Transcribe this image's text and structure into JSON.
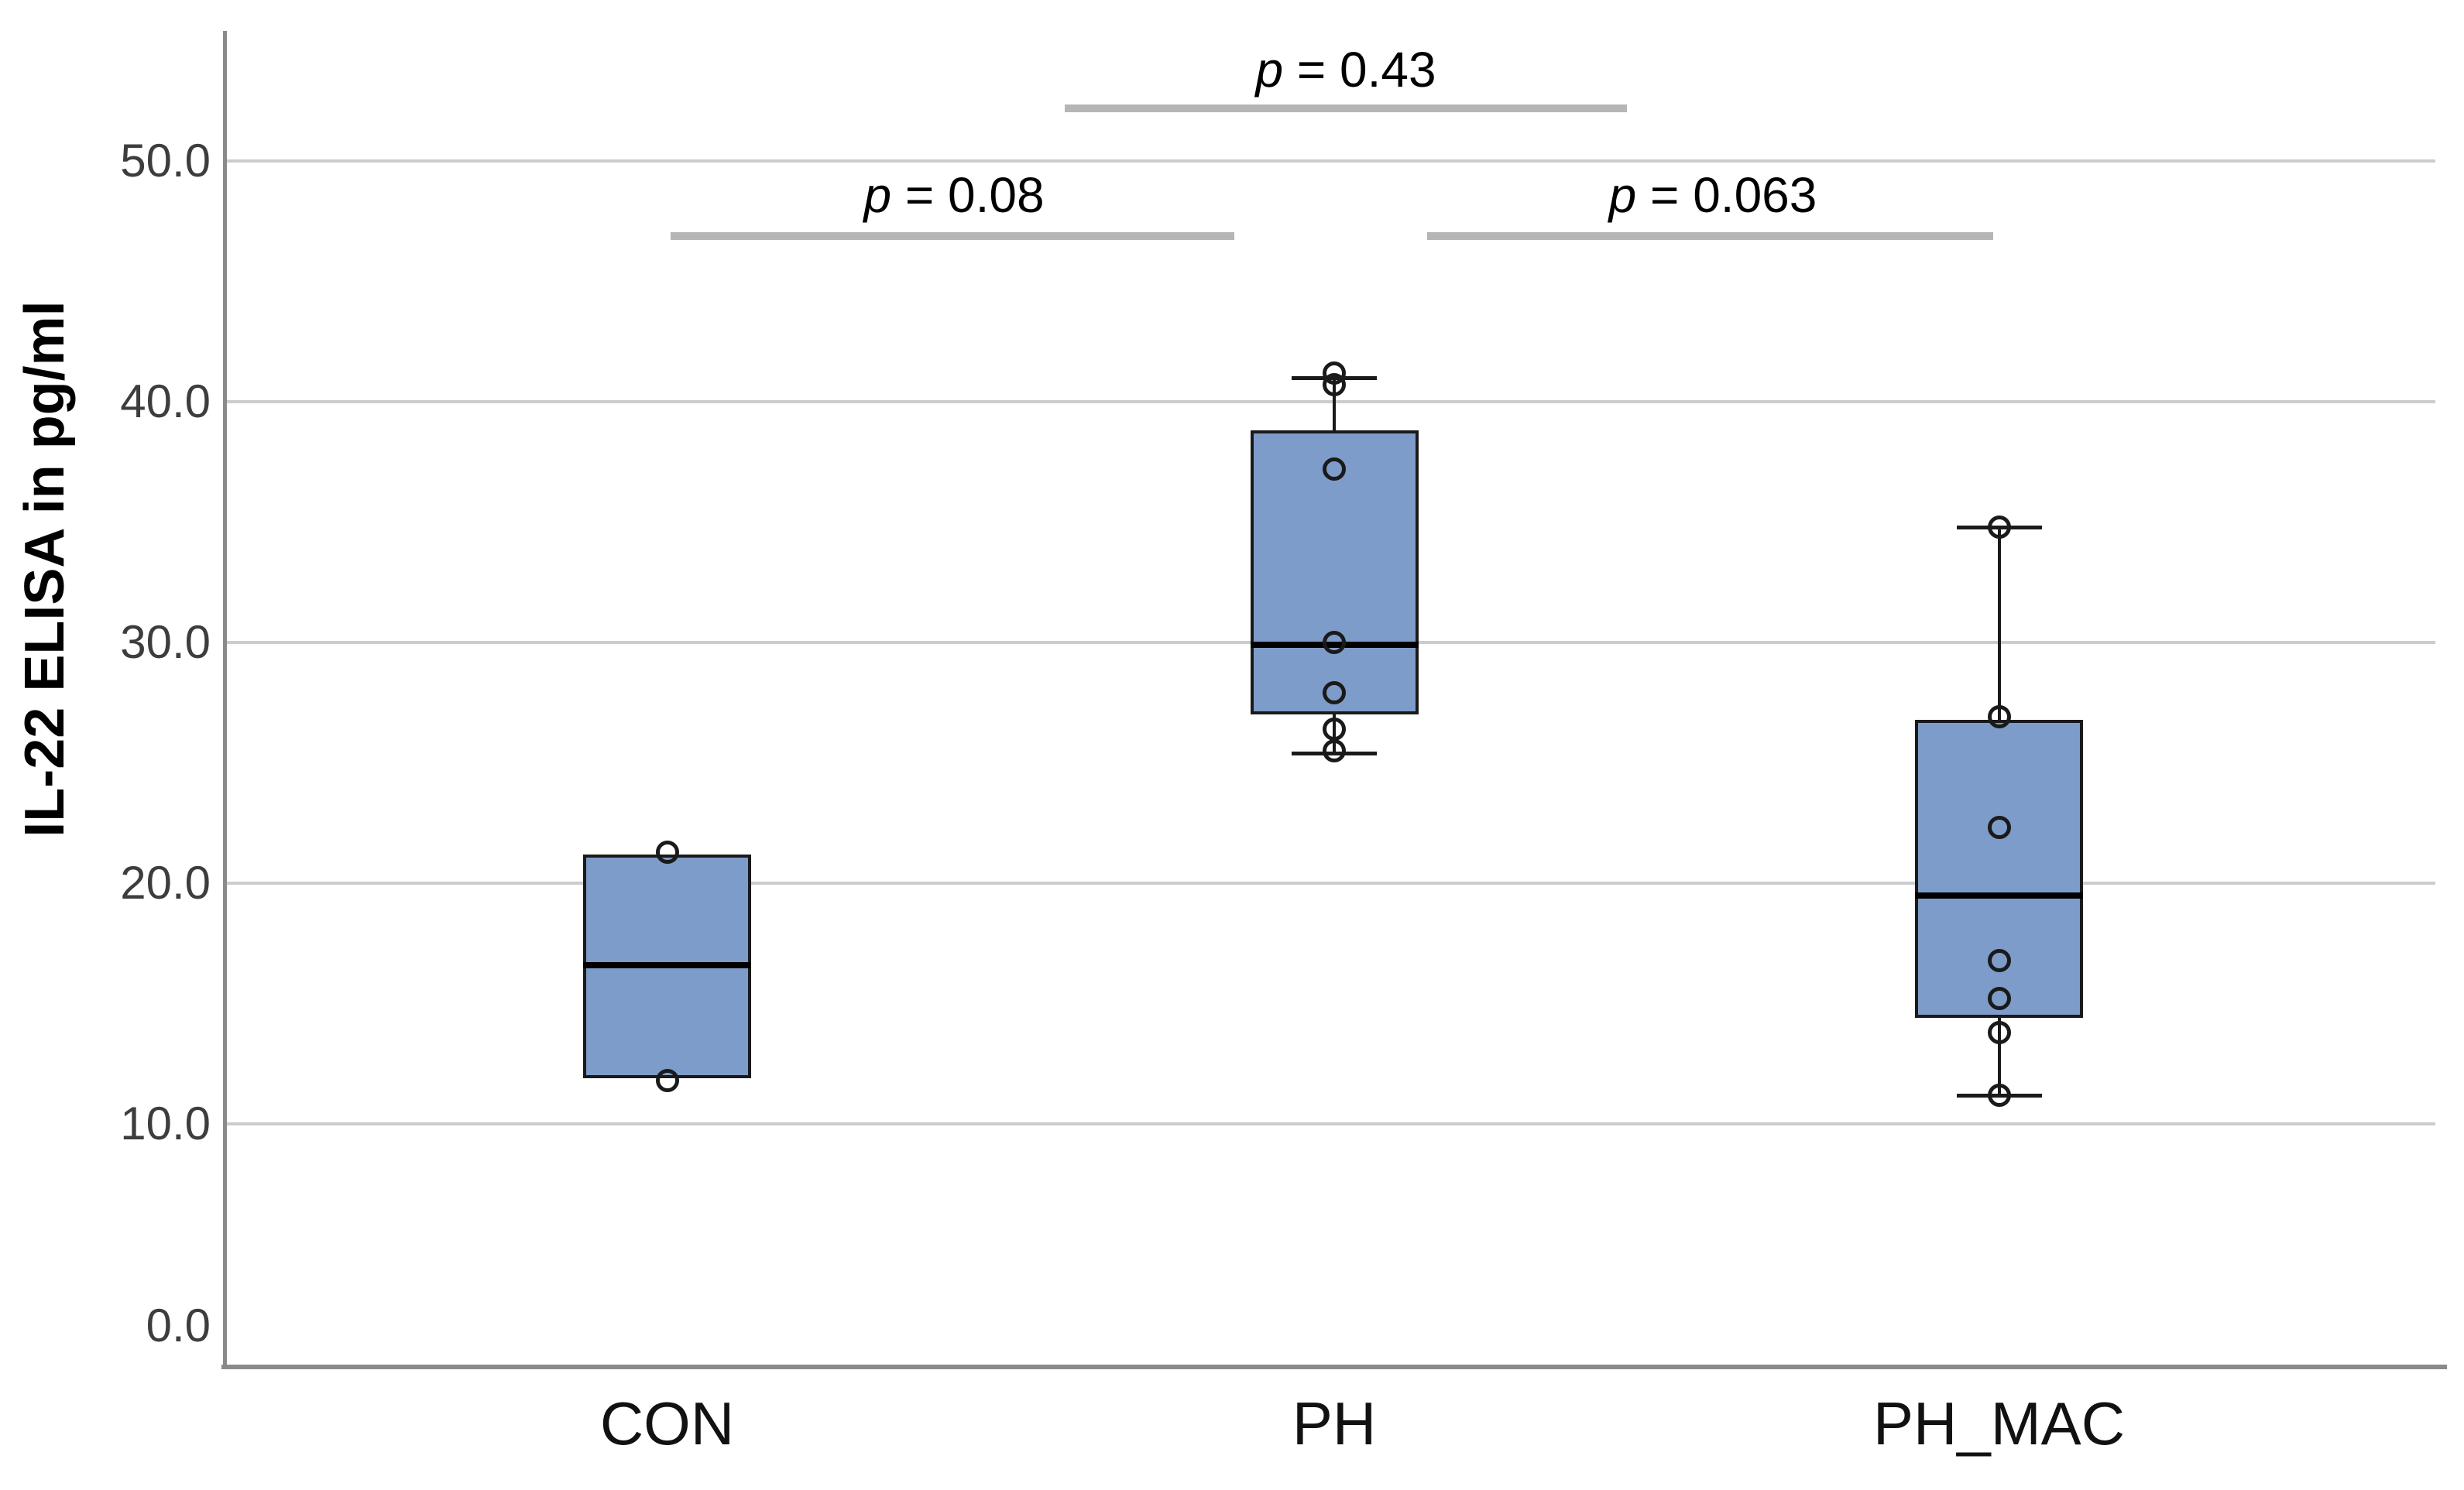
{
  "chart_data": {
    "type": "boxplot",
    "title": "",
    "ylabel": "IL-22 ELISA in pg/ml",
    "xlabel": "",
    "ylim": [
      0,
      55.4
    ],
    "grid": true,
    "legend": "none",
    "y_ticks": [
      {
        "value": 0,
        "label": "0.0"
      },
      {
        "value": 10,
        "label": "10.0"
      },
      {
        "value": 20,
        "label": "20.0"
      },
      {
        "value": 30,
        "label": "30.0"
      },
      {
        "value": 40,
        "label": "40.0"
      },
      {
        "value": 50,
        "label": "50.0"
      }
    ],
    "categories": [
      "CON",
      "PH",
      "PH_MAC"
    ],
    "groups": [
      {
        "label": "CON",
        "q1": 11.9,
        "median": 16.6,
        "q3": 21.2,
        "whisker_low": null,
        "whisker_high": null,
        "points": [
          21.3,
          11.8
        ]
      },
      {
        "label": "PH",
        "q1": 27.0,
        "median": 29.9,
        "q3": 38.8,
        "whisker_low": 25.4,
        "whisker_high": 41.0,
        "points": [
          41.2,
          40.7,
          37.2,
          30.0,
          27.9,
          26.4,
          25.5
        ]
      },
      {
        "label": "PH_MAC",
        "q1": 14.4,
        "median": 19.5,
        "q3": 26.8,
        "whisker_low": 11.2,
        "whisker_high": 34.8,
        "points": [
          34.8,
          26.9,
          22.3,
          16.8,
          15.2,
          13.8,
          11.2
        ]
      }
    ],
    "annotations": [
      {
        "label": "p = 0.43",
        "pair": [
          "CON",
          "PH_MAC"
        ]
      },
      {
        "label": "p = 0.08",
        "pair": [
          "CON",
          "PH"
        ]
      },
      {
        "label": "p = 0.063",
        "pair": [
          "PH",
          "PH_MAC"
        ]
      }
    ],
    "colors": {
      "box_fill": "#7e9cc9",
      "box_border": "#1a1a1a",
      "median_line": "#000000",
      "gridline": "#cccccc",
      "axis_line": "#8a8a8a",
      "significance_bar": "#b5b5b5",
      "text": "#000000"
    }
  }
}
